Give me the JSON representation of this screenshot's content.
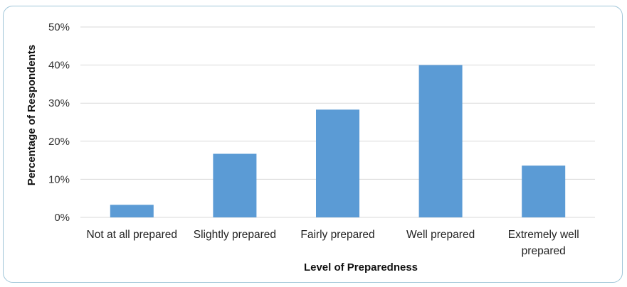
{
  "chart_data": {
    "type": "bar",
    "categories": [
      "Not at all prepared",
      "Slightly prepared",
      "Fairly prepared",
      "Well prepared",
      "Extremely well prepared"
    ],
    "category_lines": [
      [
        "Not at all prepared"
      ],
      [
        "Slightly prepared"
      ],
      [
        "Fairly prepared"
      ],
      [
        "Well prepared"
      ],
      [
        "Extremely well",
        "prepared"
      ]
    ],
    "values": [
      3.3,
      16.7,
      28.3,
      40.0,
      13.6
    ],
    "y_ticks": [
      0,
      10,
      20,
      30,
      40,
      50
    ],
    "y_tick_labels": [
      "0%",
      "10%",
      "20%",
      "30%",
      "40%",
      "50%"
    ],
    "ylim": [
      0,
      50
    ],
    "xlabel": "Level of Preparedness",
    "ylabel": "Percentage of Respondents",
    "grid": true,
    "legend": "none",
    "bar_color": "#5b9bd5",
    "grid_color": "#d9d9d9"
  }
}
